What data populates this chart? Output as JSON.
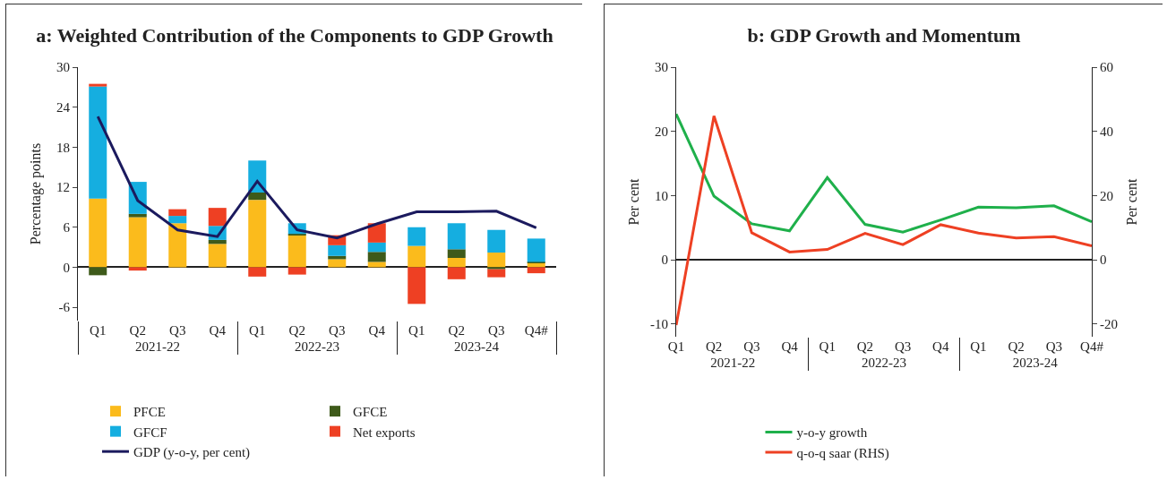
{
  "chart_data": [
    {
      "type": "bar",
      "title": "a: Weighted Contribution of the Components to GDP Growth",
      "ylabel": "Percentage points",
      "categories": [
        "Q1",
        "Q2",
        "Q3",
        "Q4",
        "Q1",
        "Q2",
        "Q3",
        "Q4",
        "Q1",
        "Q2",
        "Q3",
        "Q4#"
      ],
      "annotations": [
        "2021-22",
        "2022-23",
        "2023-24"
      ],
      "stacked": true,
      "ylim": [
        -8,
        30
      ],
      "yticks": [
        -6,
        0,
        6,
        12,
        18,
        24,
        30
      ],
      "legend": "bottom",
      "series": [
        {
          "name": "PFCE",
          "color": "#fbbb1c",
          "values": [
            10.3,
            7.5,
            6.6,
            3.5,
            10.1,
            4.8,
            1.2,
            0.8,
            3.2,
            1.4,
            2.2,
            0.7
          ]
        },
        {
          "name": "GFCE",
          "color": "#3e5a1a",
          "values": [
            -1.2,
            0.5,
            null,
            0.6,
            1.1,
            0.2,
            0.5,
            1.5,
            0,
            1.3,
            -0.3,
            0.1
          ]
        },
        {
          "name": "GFCF",
          "color": "#15aee0",
          "values": [
            16.8,
            4.8,
            1.1,
            2.1,
            4.8,
            1.6,
            1.6,
            1.4,
            2.8,
            3.9,
            3.4,
            3.5
          ]
        },
        {
          "name": "Net exports",
          "color": "#ee4023",
          "values": [
            0.4,
            -0.5,
            1.0,
            2.7,
            -1.4,
            -1.1,
            1.5,
            2.9,
            -5.5,
            -1.8,
            -1.2,
            -0.9
          ]
        },
        {
          "name": "GDP (y-o-y, per cent)",
          "type": "line",
          "color": "#1b1a5e",
          "values": [
            22.6,
            10.0,
            5.6,
            4.6,
            12.9,
            5.6,
            4.4,
            6.5,
            8.3,
            8.3,
            8.4,
            5.9
          ]
        }
      ]
    },
    {
      "type": "line",
      "title": "b: GDP Growth and Momentum",
      "ylabel": "Per cent",
      "y2label": "Per cent",
      "categories": [
        "Q1",
        "Q2",
        "Q3",
        "Q4",
        "Q1",
        "Q2",
        "Q3",
        "Q4",
        "Q1",
        "Q2",
        "Q3",
        "Q4#"
      ],
      "annotations": [
        "2021-22",
        "2022-23",
        "2023-24"
      ],
      "ylim": [
        -12,
        30
      ],
      "yticks": [
        -10,
        0,
        10,
        20,
        30
      ],
      "y2lim": [
        -24,
        60
      ],
      "y2ticks": [
        -20,
        0,
        20,
        40,
        60
      ],
      "legend": "bottom",
      "marker": "none",
      "line_style": "solid",
      "series": [
        {
          "name": "y-o-y growth",
          "color": "#1fb04b",
          "values": [
            22.7,
            9.9,
            5.6,
            4.5,
            12.8,
            5.5,
            4.3,
            6.2,
            8.2,
            8.1,
            8.4,
            5.9
          ]
        },
        {
          "name": "q-o-q saar (RHS)",
          "color": "#ee4023",
          "axis": "y2",
          "values": [
            -20.4,
            44.8,
            8.4,
            2.4,
            3.2,
            8.2,
            4.7,
            10.9,
            8.3,
            6.8,
            7.2,
            4.3
          ]
        }
      ]
    }
  ]
}
